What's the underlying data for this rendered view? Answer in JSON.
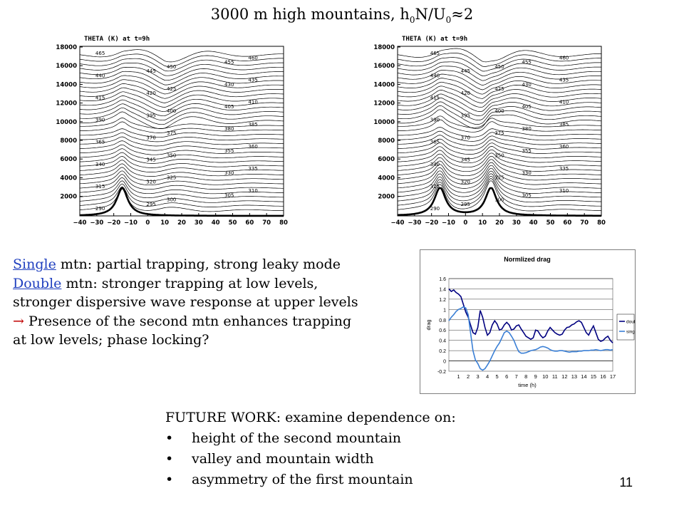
{
  "title": {
    "pre": "3000 m high mountains, h",
    "sub1": "0",
    "mid": "N/U",
    "sub2": "0",
    "post": "≈2"
  },
  "panels": [
    {
      "header": "THETA (K) at t=9h",
      "yticks": [
        "18000",
        "16000",
        "14000",
        "12000",
        "10000",
        "8000",
        "6000",
        "4000",
        "2000"
      ],
      "xticks": [
        "−40",
        "−30",
        "−20",
        "−10",
        "0",
        "10",
        "20",
        "30",
        "40",
        "50",
        "60",
        "70",
        "80"
      ],
      "contour_labels": [
        "465",
        "460",
        "455",
        "450",
        "445",
        "440",
        "435",
        "430",
        "425",
        "420",
        "415",
        "410",
        "405",
        "400",
        "395",
        "390",
        "385",
        "380",
        "375",
        "370",
        "365",
        "360",
        "355",
        "350",
        "345",
        "340",
        "335",
        "330",
        "325",
        "320",
        "315",
        "310",
        "305",
        "300",
        "295",
        "290"
      ],
      "mountains": 1
    },
    {
      "header": "THETA (K) at t=9h",
      "yticks": [
        "18000",
        "16000",
        "14000",
        "12000",
        "10000",
        "8000",
        "6000",
        "4000",
        "2000"
      ],
      "xticks": [
        "−40",
        "−30",
        "−20",
        "−10",
        "0",
        "10",
        "20",
        "30",
        "40",
        "50",
        "60",
        "70",
        "80"
      ],
      "contour_labels": [
        "465",
        "460",
        "455",
        "450",
        "445",
        "440",
        "435",
        "430",
        "425",
        "420",
        "415",
        "410",
        "405",
        "400",
        "395",
        "390",
        "385",
        "380",
        "375",
        "370",
        "365",
        "360",
        "355",
        "350",
        "345",
        "340",
        "335",
        "330",
        "325",
        "320",
        "315",
        "310",
        "305",
        "300",
        "295",
        "290"
      ],
      "mountains": 2
    }
  ],
  "notes": {
    "single_word": "Single",
    "single_text": " mtn:  partial trapping, strong leaky mode",
    "double_word": "Double",
    "double_text": " mtn: stronger trapping at low levels,",
    "line3": "stronger dispersive wave response at upper levels",
    "arrow": "→",
    "line4": " Presence of the second mtn enhances trapping",
    "line5": "at low levels; phase locking?"
  },
  "future": {
    "heading": "FUTURE WORK:  examine dependence on:",
    "items": [
      "height of the second mountain",
      "valley and mountain width",
      "asymmetry of the first mountain"
    ]
  },
  "page_number": "11",
  "colors": {
    "double": "#000080",
    "single": "#3a7fd5"
  },
  "chart_data": {
    "type": "line",
    "title": "Normlized drag",
    "xlabel": "time (h)",
    "ylabel": "drag",
    "x": [
      0,
      0.25,
      0.5,
      0.75,
      1,
      1.25,
      1.5,
      1.75,
      2,
      2.25,
      2.5,
      2.75,
      3,
      3.25,
      3.5,
      3.75,
      4,
      4.25,
      4.5,
      4.75,
      5,
      5.25,
      5.5,
      5.75,
      6,
      6.25,
      6.5,
      6.75,
      7,
      7.25,
      7.5,
      7.75,
      8,
      8.25,
      8.5,
      8.75,
      9,
      9.25,
      9.5,
      9.75,
      10,
      10.25,
      10.5,
      10.75,
      11,
      11.25,
      11.5,
      11.75,
      12,
      12.25,
      12.5,
      12.75,
      13,
      13.25,
      13.5,
      13.75,
      14,
      14.25,
      14.5,
      14.75,
      15,
      15.25,
      15.5,
      15.75,
      16,
      16.25,
      16.5,
      16.75,
      17
    ],
    "xticks": [
      "1",
      "2",
      "3",
      "4",
      "5",
      "6",
      "7",
      "8",
      "9",
      "10",
      "11",
      "12",
      "13",
      "14",
      "15",
      "16",
      "17"
    ],
    "ylim": [
      -0.2,
      1.6
    ],
    "yticks": [
      "1.6",
      "1.4",
      "1.2",
      "1",
      "0.8",
      "0.6",
      "0.4",
      "0.2",
      "0",
      "-0.2"
    ],
    "grid": true,
    "legend": "right",
    "series": [
      {
        "name": "double",
        "values": [
          1.4,
          1.35,
          1.38,
          1.33,
          1.3,
          1.25,
          1.1,
          0.95,
          0.85,
          0.7,
          0.55,
          0.52,
          0.65,
          0.98,
          0.85,
          0.65,
          0.5,
          0.55,
          0.7,
          0.78,
          0.72,
          0.6,
          0.62,
          0.7,
          0.75,
          0.7,
          0.6,
          0.62,
          0.68,
          0.7,
          0.62,
          0.55,
          0.48,
          0.45,
          0.42,
          0.45,
          0.6,
          0.58,
          0.5,
          0.45,
          0.48,
          0.58,
          0.65,
          0.6,
          0.55,
          0.52,
          0.5,
          0.52,
          0.6,
          0.65,
          0.66,
          0.7,
          0.72,
          0.76,
          0.78,
          0.75,
          0.65,
          0.55,
          0.5,
          0.6,
          0.68,
          0.55,
          0.42,
          0.38,
          0.4,
          0.45,
          0.48,
          0.4,
          0.35
        ]
      },
      {
        "name": "single",
        "values": [
          0.78,
          0.85,
          0.9,
          0.96,
          1.0,
          1.02,
          1.05,
          1.03,
          0.9,
          0.55,
          0.2,
          0.02,
          -0.05,
          -0.15,
          -0.18,
          -0.15,
          -0.08,
          0.0,
          0.1,
          0.2,
          0.28,
          0.35,
          0.45,
          0.55,
          0.58,
          0.55,
          0.48,
          0.4,
          0.28,
          0.18,
          0.15,
          0.15,
          0.16,
          0.18,
          0.2,
          0.21,
          0.22,
          0.24,
          0.27,
          0.28,
          0.27,
          0.25,
          0.22,
          0.2,
          0.19,
          0.19,
          0.2,
          0.2,
          0.19,
          0.18,
          0.17,
          0.18,
          0.18,
          0.18,
          0.19,
          0.19,
          0.2,
          0.2,
          0.2,
          0.21,
          0.21,
          0.22,
          0.21,
          0.2,
          0.21,
          0.22,
          0.22,
          0.21,
          0.22
        ]
      }
    ]
  }
}
